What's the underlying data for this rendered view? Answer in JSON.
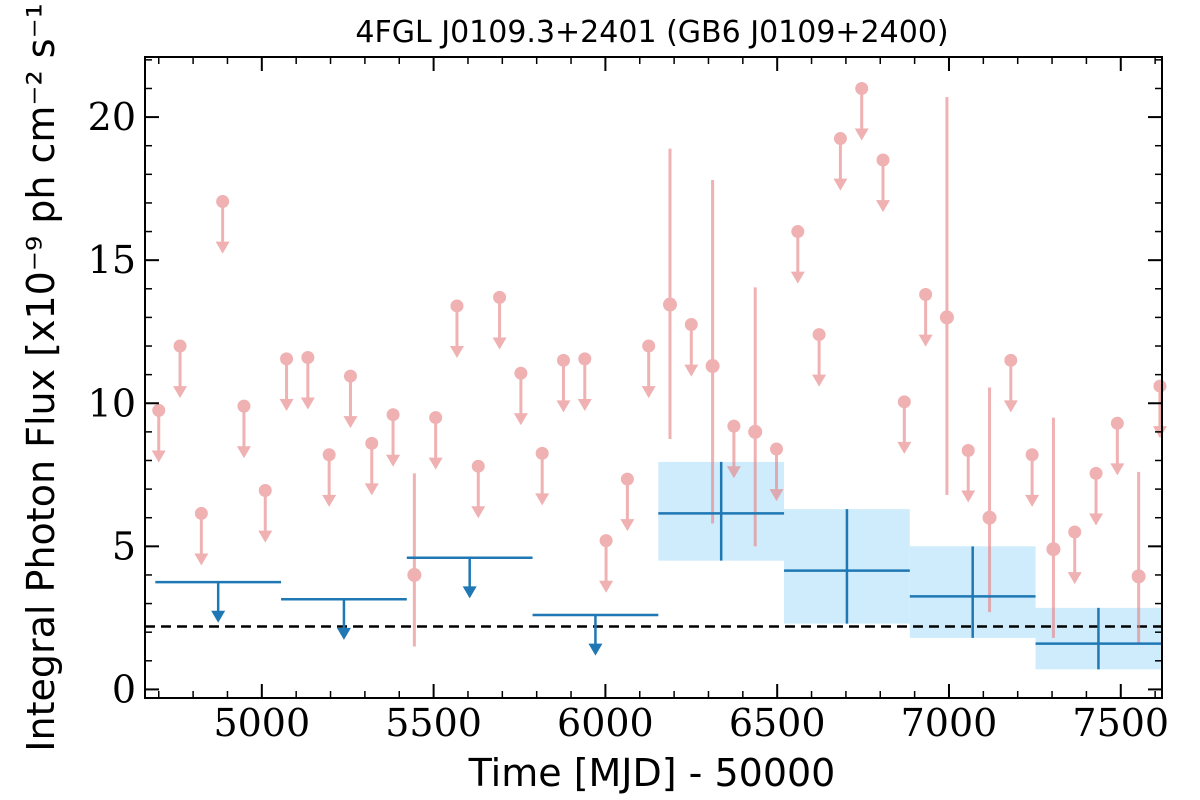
{
  "chart_data": {
    "type": "scatter",
    "title": "4FGL J0109.3+2401 (GB6 J0109+2400)",
    "xlabel": "Time [MJD] - 50000",
    "ylabel": "Integral Photon Flux [x10⁻⁹ ph cm⁻² s⁻¹]",
    "xlim": [
      4660,
      7620
    ],
    "ylim": [
      -0.3,
      22.1
    ],
    "x_ticks": [
      5000,
      5500,
      6000,
      6500,
      7000,
      7500
    ],
    "y_ticks": [
      0,
      5,
      10,
      15,
      20
    ],
    "baseline": 2.2,
    "colors": {
      "short_bins": "#e8888a",
      "long_bins": "#1f77b4",
      "band": "#ceecfc",
      "baseline": "#000000"
    },
    "series": [
      {
        "points": [
          {
            "x": 4700,
            "y": 9.75,
            "ul": true
          },
          {
            "x": 4762,
            "y": 12.0,
            "ul": true
          },
          {
            "x": 4824,
            "y": 6.15,
            "ul": true
          },
          {
            "x": 4886,
            "y": 17.05,
            "ul": true
          },
          {
            "x": 4948,
            "y": 9.9,
            "ul": true
          },
          {
            "x": 5010,
            "y": 6.95,
            "ul": true
          },
          {
            "x": 5072,
            "y": 11.55,
            "ul": true
          },
          {
            "x": 5134,
            "y": 11.6,
            "ul": true
          },
          {
            "x": 5196,
            "y": 8.2,
            "ul": true
          },
          {
            "x": 5258,
            "y": 10.95,
            "ul": true
          },
          {
            "x": 5320,
            "y": 8.6,
            "ul": true
          },
          {
            "x": 5382,
            "y": 9.6,
            "ul": true
          },
          {
            "x": 5444,
            "y": 4.0,
            "lo": 1.5,
            "hi": 7.55
          },
          {
            "x": 5506,
            "y": 9.5,
            "ul": true
          },
          {
            "x": 5568,
            "y": 13.4,
            "ul": true
          },
          {
            "x": 5630,
            "y": 7.8,
            "ul": true
          },
          {
            "x": 5692,
            "y": 13.7,
            "ul": true
          },
          {
            "x": 5754,
            "y": 11.05,
            "ul": true
          },
          {
            "x": 5816,
            "y": 8.25,
            "ul": true
          },
          {
            "x": 5878,
            "y": 11.5,
            "ul": true
          },
          {
            "x": 5940,
            "y": 11.55,
            "ul": true
          },
          {
            "x": 6002,
            "y": 5.2,
            "ul": true
          },
          {
            "x": 6064,
            "y": 7.35,
            "ul": true
          },
          {
            "x": 6126,
            "y": 12.0,
            "ul": true
          },
          {
            "x": 6188,
            "y": 13.45,
            "lo": 8.75,
            "hi": 18.9
          },
          {
            "x": 6250,
            "y": 12.75,
            "ul": true
          },
          {
            "x": 6312,
            "y": 11.3,
            "lo": 5.8,
            "hi": 17.8
          },
          {
            "x": 6374,
            "y": 9.2,
            "ul": true
          },
          {
            "x": 6436,
            "y": 9.0,
            "lo": 5.0,
            "hi": 14.05
          },
          {
            "x": 6498,
            "y": 8.4,
            "ul": true
          },
          {
            "x": 6560,
            "y": 16.0,
            "ul": true
          },
          {
            "x": 6622,
            "y": 12.4,
            "ul": true
          },
          {
            "x": 6684,
            "y": 19.25,
            "ul": true
          },
          {
            "x": 6746,
            "y": 21.0,
            "ul": true
          },
          {
            "x": 6808,
            "y": 18.5,
            "ul": true
          },
          {
            "x": 6870,
            "y": 10.05,
            "ul": true
          },
          {
            "x": 6932,
            "y": 13.8,
            "ul": true
          },
          {
            "x": 6994,
            "y": 13.0,
            "lo": 6.8,
            "hi": 20.7
          },
          {
            "x": 7056,
            "y": 8.35,
            "ul": true
          },
          {
            "x": 7118,
            "y": 6.0,
            "lo": 2.7,
            "hi": 10.55
          },
          {
            "x": 7180,
            "y": 11.5,
            "ul": true
          },
          {
            "x": 7242,
            "y": 8.2,
            "ul": true
          },
          {
            "x": 7304,
            "y": 4.9,
            "lo": 1.8,
            "hi": 9.5
          },
          {
            "x": 7366,
            "y": 5.5,
            "ul": true
          },
          {
            "x": 7428,
            "y": 7.55,
            "ul": true
          },
          {
            "x": 7490,
            "y": 9.3,
            "ul": true
          },
          {
            "x": 7552,
            "y": 3.95,
            "lo": 1.6,
            "hi": 7.6
          },
          {
            "x": 7614,
            "y": 10.6,
            "ul": true
          }
        ]
      },
      {
        "points": [
          {
            "x0": 4690,
            "x1": 5056,
            "xc": 4873,
            "y": 3.75,
            "ul": true
          },
          {
            "x0": 5056,
            "x1": 5422,
            "xc": 5239,
            "y": 3.15,
            "ul": true
          },
          {
            "x0": 5422,
            "x1": 5788,
            "xc": 5605,
            "y": 4.6,
            "ul": true
          },
          {
            "x0": 5788,
            "x1": 6154,
            "xc": 5971,
            "y": 2.6,
            "ul": true
          },
          {
            "x0": 6154,
            "x1": 6520,
            "xc": 6337,
            "y": 6.15,
            "lo": 4.5,
            "hi": 7.95
          },
          {
            "x0": 6520,
            "x1": 6886,
            "xc": 6703,
            "y": 4.15,
            "lo": 2.3,
            "hi": 6.3
          },
          {
            "x0": 6886,
            "x1": 7252,
            "xc": 7069,
            "y": 3.25,
            "lo": 1.8,
            "hi": 5.0
          },
          {
            "x0": 7252,
            "x1": 7618,
            "xc": 7435,
            "y": 1.6,
            "lo": 0.7,
            "hi": 2.85
          }
        ]
      }
    ]
  }
}
